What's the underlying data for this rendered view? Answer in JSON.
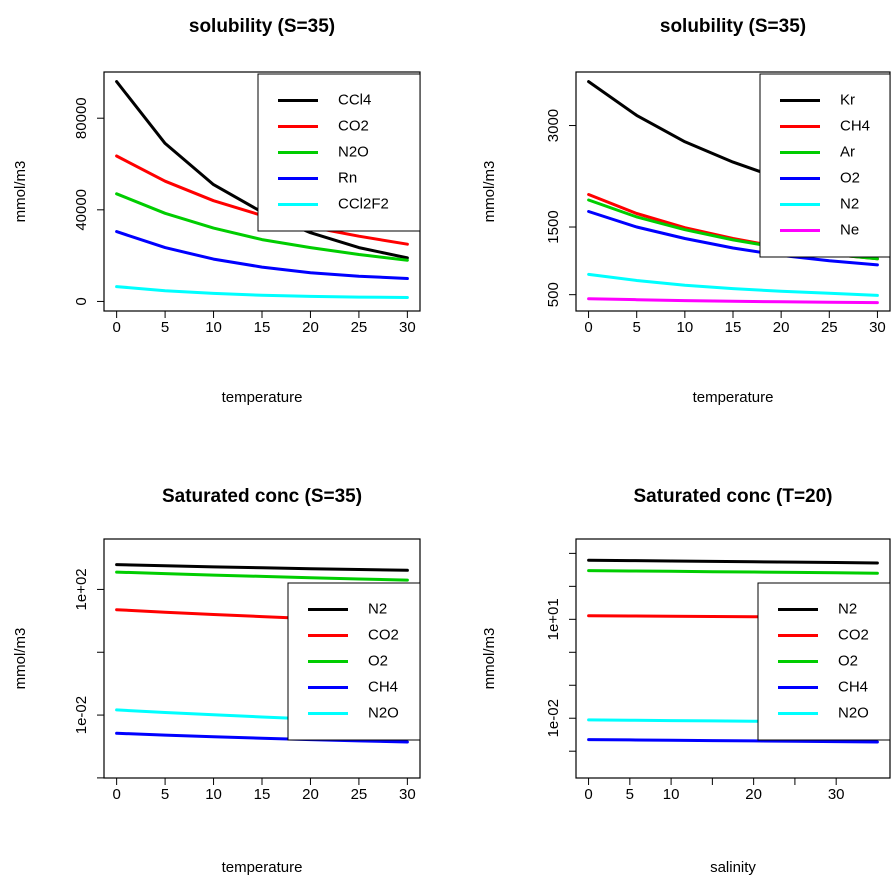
{
  "chart_data": [
    {
      "type": "line",
      "title": "solubility (S=35)",
      "xlabel": "temperature",
      "ylabel": "mmol/m3",
      "xlim": [
        0,
        30
      ],
      "ylim": [
        0,
        96000
      ],
      "y_scale": "linear",
      "xticks": [
        0,
        5,
        10,
        15,
        20,
        25,
        30
      ],
      "yticks": [
        0,
        40000,
        80000
      ],
      "ytick_labels": [
        "0",
        "40000",
        "80000"
      ],
      "legend_position": "top-right",
      "x": [
        0,
        5,
        10,
        15,
        20,
        25,
        30
      ],
      "series": [
        {
          "name": "CCl4",
          "color": "#000000",
          "values": [
            96000,
            69000,
            51000,
            39000,
            30000,
            23500,
            19000
          ]
        },
        {
          "name": "CO2",
          "color": "#ff0000",
          "values": [
            63500,
            52500,
            44000,
            37500,
            32500,
            28500,
            25000
          ]
        },
        {
          "name": "N2O",
          "color": "#00cd00",
          "values": [
            47000,
            38500,
            32000,
            27000,
            23500,
            20500,
            18000
          ]
        },
        {
          "name": "Rn",
          "color": "#0000ff",
          "values": [
            30500,
            23500,
            18500,
            15000,
            12500,
            11000,
            10000
          ]
        },
        {
          "name": "CCl2F2",
          "color": "#00ffff",
          "values": [
            6500,
            4700,
            3500,
            2700,
            2200,
            1900,
            1700
          ]
        }
      ]
    },
    {
      "type": "line",
      "title": "solubility (S=35)",
      "xlabel": "temperature",
      "ylabel": "mmol/m3",
      "xlim": [
        0,
        30
      ],
      "ylim": [
        400,
        3650
      ],
      "y_scale": "linear",
      "xticks": [
        0,
        5,
        10,
        15,
        20,
        25,
        30
      ],
      "yticks": [
        500,
        1500,
        3000
      ],
      "ytick_labels": [
        "500",
        "1500",
        "3000"
      ],
      "legend_position": "top-right",
      "x": [
        0,
        5,
        10,
        15,
        20,
        25,
        30
      ],
      "series": [
        {
          "name": "Kr",
          "color": "#000000",
          "values": [
            3650,
            3150,
            2760,
            2460,
            2210,
            2000,
            1820
          ]
        },
        {
          "name": "CH4",
          "color": "#ff0000",
          "values": [
            1980,
            1700,
            1490,
            1330,
            1200,
            1100,
            1030
          ]
        },
        {
          "name": "Ar",
          "color": "#00cd00",
          "values": [
            1900,
            1650,
            1460,
            1310,
            1190,
            1100,
            1030
          ]
        },
        {
          "name": "O2",
          "color": "#0000ff",
          "values": [
            1730,
            1500,
            1330,
            1190,
            1080,
            1000,
            940
          ]
        },
        {
          "name": "N2",
          "color": "#00ffff",
          "values": [
            800,
            710,
            640,
            590,
            550,
            520,
            490
          ]
        },
        {
          "name": "Ne",
          "color": "#ff00ff",
          "values": [
            440,
            425,
            412,
            402,
            394,
            388,
            383
          ]
        }
      ]
    },
    {
      "type": "line",
      "title": "Saturated conc (S=35)",
      "xlabel": "temperature",
      "ylabel": "mmol/m3",
      "xlim": [
        0,
        30
      ],
      "ylim": [
        0.0002,
        2000
      ],
      "y_scale": "log",
      "xticks": [
        0,
        5,
        10,
        15,
        20,
        25,
        30
      ],
      "yticks": [
        0.01,
        100
      ],
      "ytick_labels": [
        "1e-02",
        "1e+02"
      ],
      "yticks_minor": [
        0.0001,
        1,
        10000
      ],
      "legend_position": "right",
      "x": [
        0,
        5,
        10,
        15,
        20,
        25,
        30
      ],
      "series": [
        {
          "name": "N2",
          "color": "#000000",
          "values": [
            617,
            567,
            522,
            487,
            457,
            431,
            407
          ]
        },
        {
          "name": "CO2",
          "color": "#ff0000",
          "values": [
            22.6,
            18.8,
            15.9,
            13.6,
            11.8,
            10.4,
            9.3
          ]
        },
        {
          "name": "O2",
          "color": "#00cd00",
          "values": [
            356,
            318,
            286,
            259,
            235,
            215,
            198
          ]
        },
        {
          "name": "CH4",
          "color": "#0000ff",
          "values": [
            0.00262,
            0.00231,
            0.00205,
            0.00184,
            0.00166,
            0.00151,
            0.00139
          ]
        },
        {
          "name": "N2O",
          "color": "#00ffff",
          "values": [
            0.0146,
            0.0121,
            0.0102,
            0.0087,
            0.0075,
            0.0066,
            0.0058
          ]
        }
      ]
    },
    {
      "type": "line",
      "title": "Saturated conc (T=20)",
      "xlabel": "salinity",
      "ylabel": "mmol/m3",
      "xlim": [
        0,
        35
      ],
      "ylim": [
        0.0003,
        1400
      ],
      "y_scale": "log",
      "xticks": [
        0,
        5,
        10,
        20,
        30
      ],
      "xticks_minor": [
        15,
        25
      ],
      "yticks": [
        0.01,
        10
      ],
      "ytick_labels": [
        "1e-02",
        "1e+01"
      ],
      "yticks_minor": [
        0.001,
        0.1,
        1,
        100,
        1000
      ],
      "legend_position": "right",
      "x": [
        0,
        5,
        10,
        15,
        20,
        25,
        30,
        35
      ],
      "series": [
        {
          "name": "N2",
          "color": "#000000",
          "values": [
            620,
            604,
            588,
            572,
            557,
            542,
            527,
            510
          ]
        },
        {
          "name": "CO2",
          "color": "#ff0000",
          "values": [
            12.8,
            12.6,
            12.4,
            12.2,
            12.0,
            11.8,
            11.6,
            11.4
          ]
        },
        {
          "name": "O2",
          "color": "#00cd00",
          "values": [
            300,
            293,
            286,
            279,
            272,
            265,
            258,
            250
          ]
        },
        {
          "name": "CH4",
          "color": "#0000ff",
          "values": [
            0.00225,
            0.0022,
            0.00215,
            0.0021,
            0.00205,
            0.002,
            0.00195,
            0.0019
          ]
        },
        {
          "name": "N2O",
          "color": "#00ffff",
          "values": [
            0.0089,
            0.0087,
            0.0085,
            0.0083,
            0.0081,
            0.0079,
            0.0077,
            0.0075
          ]
        }
      ]
    }
  ]
}
